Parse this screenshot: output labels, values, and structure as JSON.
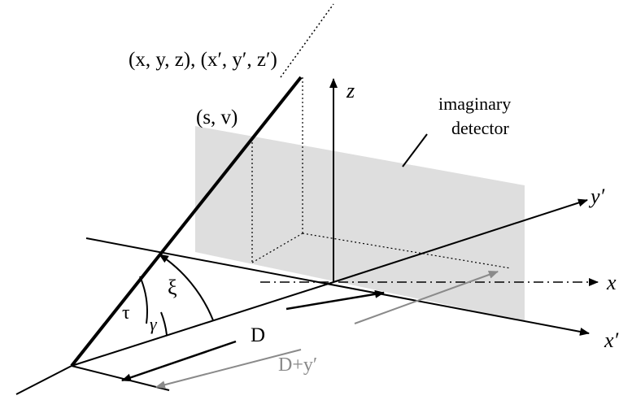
{
  "labels": {
    "point_coords": "(x, y, z), (x′, y′, z′)",
    "detector_coords": "(s, v)",
    "z_axis": "z",
    "y_prime_axis": "y′",
    "x_axis": "x",
    "x_prime_axis": "x′",
    "imaginary_line1": "imaginary",
    "detector_line2": "detector",
    "tau": "τ",
    "gamma": "γ",
    "xi": "ξ",
    "distance_D": "D",
    "distance_D_plus_y": "D+y′"
  },
  "colors": {
    "line": "#000000",
    "detector_fill": "#dedede",
    "grey_arrow": "#8a8a8a"
  }
}
